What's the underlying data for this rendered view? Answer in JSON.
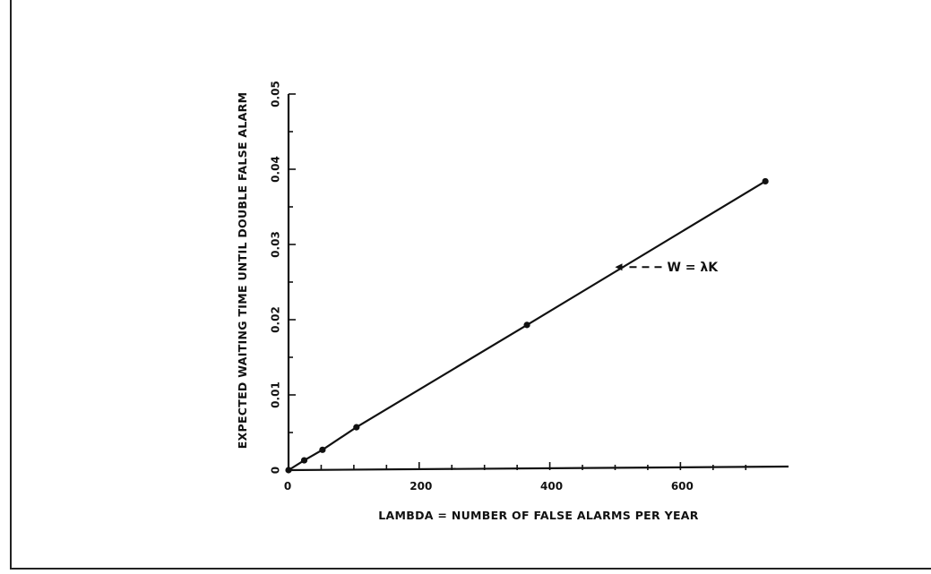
{
  "chart_data": {
    "type": "line",
    "title": "",
    "xlabel": "LAMBDA = NUMBER OF FALSE ALARMS PER YEAR",
    "ylabel": "EXPECTED WAITING TIME UNTIL DOUBLE FALSE ALARM",
    "xlim": [
      0,
      760
    ],
    "ylim": [
      0,
      0.05
    ],
    "x_ticks": [
      0,
      200,
      400,
      600
    ],
    "x_tick_labels": [
      "0",
      "200",
      "400",
      "600"
    ],
    "y_ticks": [
      0,
      0.01,
      0.02,
      0.03,
      0.04,
      0.05
    ],
    "y_tick_labels": [
      "0",
      "0.01",
      "0.02",
      "0.03",
      "0.04",
      "0.05"
    ],
    "x_minor_step": 50,
    "y_minor_step": 0.005,
    "grid": false,
    "legend": "none",
    "series": [
      {
        "x": [
          0,
          24,
          52,
          104,
          365,
          730
        ],
        "y": [
          0,
          0.0013,
          0.0027,
          0.0057,
          0.0193,
          0.0384
        ]
      }
    ],
    "annotations": [
      {
        "text": "W = λK",
        "arrow_to_x": 500,
        "arrow_to_y": 0.027
      }
    ]
  }
}
